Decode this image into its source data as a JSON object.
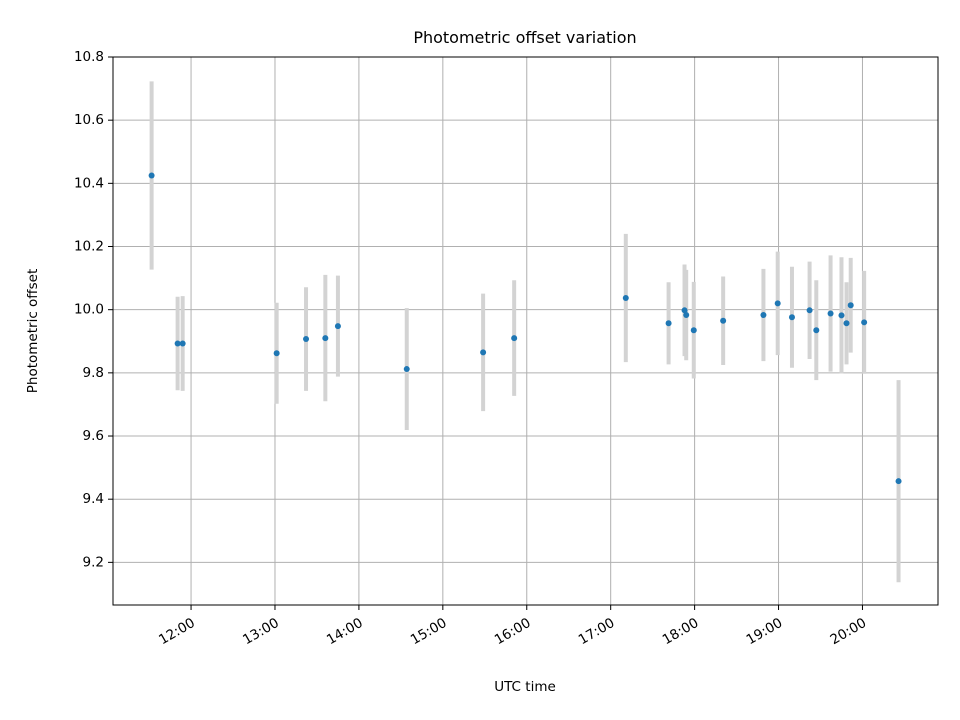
{
  "chart_data": {
    "type": "scatter",
    "title": "Photometric offset variation",
    "xlabel": "UTC time",
    "ylabel": "Photometric offset",
    "x_tick_labels": [
      "12:00",
      "13:00",
      "14:00",
      "15:00",
      "16:00",
      "17:00",
      "18:00",
      "19:00",
      "20:00"
    ],
    "x_tick_hours": [
      12,
      13,
      14,
      15,
      16,
      17,
      18,
      19,
      20
    ],
    "y_ticks": [
      9.2,
      9.4,
      9.6,
      9.8,
      10.0,
      10.2,
      10.4,
      10.6,
      10.8
    ],
    "y_tick_labels": [
      "9.2",
      "9.4",
      "9.6",
      "9.8",
      "10.0",
      "10.2",
      "10.4",
      "10.6",
      "10.8"
    ],
    "xlim_hours": [
      11.07,
      20.9
    ],
    "ylim": [
      9.065,
      10.8
    ],
    "grid": true,
    "marker_color": "#1f77b4",
    "errorbar_color": "#d3d3d3",
    "points": [
      {
        "t": 11.53,
        "y": 10.425,
        "err": 0.298
      },
      {
        "t": 11.84,
        "y": 9.893,
        "err": 0.148
      },
      {
        "t": 11.9,
        "y": 9.893,
        "err": 0.15
      },
      {
        "t": 13.02,
        "y": 9.862,
        "err": 0.16
      },
      {
        "t": 13.37,
        "y": 9.907,
        "err": 0.164
      },
      {
        "t": 13.6,
        "y": 9.91,
        "err": 0.2
      },
      {
        "t": 13.75,
        "y": 9.948,
        "err": 0.16
      },
      {
        "t": 14.57,
        "y": 9.812,
        "err": 0.193
      },
      {
        "t": 15.48,
        "y": 9.865,
        "err": 0.186
      },
      {
        "t": 15.85,
        "y": 9.91,
        "err": 0.183
      },
      {
        "t": 17.18,
        "y": 10.037,
        "err": 0.203
      },
      {
        "t": 17.69,
        "y": 9.957,
        "err": 0.13
      },
      {
        "t": 17.88,
        "y": 9.998,
        "err": 0.145
      },
      {
        "t": 17.9,
        "y": 9.983,
        "err": 0.143
      },
      {
        "t": 17.99,
        "y": 9.935,
        "err": 0.153
      },
      {
        "t": 18.34,
        "y": 9.965,
        "err": 0.14
      },
      {
        "t": 18.82,
        "y": 9.983,
        "err": 0.146
      },
      {
        "t": 18.99,
        "y": 10.02,
        "err": 0.164
      },
      {
        "t": 19.16,
        "y": 9.976,
        "err": 0.16
      },
      {
        "t": 19.37,
        "y": 9.998,
        "err": 0.154
      },
      {
        "t": 19.45,
        "y": 9.935,
        "err": 0.158
      },
      {
        "t": 19.62,
        "y": 9.988,
        "err": 0.184
      },
      {
        "t": 19.75,
        "y": 9.982,
        "err": 0.184
      },
      {
        "t": 19.81,
        "y": 9.957,
        "err": 0.13
      },
      {
        "t": 19.86,
        "y": 10.014,
        "err": 0.15
      },
      {
        "t": 20.02,
        "y": 9.96,
        "err": 0.163
      },
      {
        "t": 20.43,
        "y": 9.457,
        "err": 0.32
      }
    ]
  }
}
